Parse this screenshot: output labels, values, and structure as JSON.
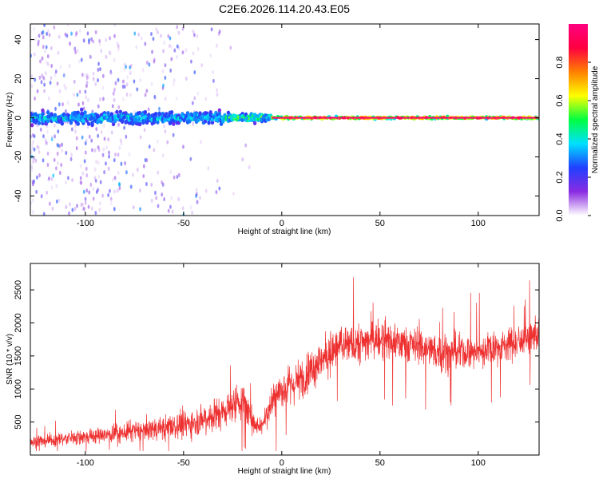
{
  "chart_data": [
    {
      "type": "heatmap",
      "title": "C2E6.2026.114.20.43.E05",
      "xlabel": "Height of straight line (km)",
      "ylabel": "Frequency (Hz)",
      "xlim": [
        -128,
        131
      ],
      "ylim": [
        -50,
        48
      ],
      "xticks": [
        -100,
        -50,
        0,
        50,
        100
      ],
      "yticks": [
        -40,
        -20,
        0,
        20,
        40
      ],
      "grid": false,
      "colorbar": {
        "label": "Normalized spectral amplitude",
        "range": [
          0.0,
          1.0
        ],
        "ticks": [
          "0.0",
          "0.2",
          "0.4",
          "0.6",
          "0.8"
        ],
        "colormap": "rainbow",
        "stops": [
          "#ffffff",
          "#8a2be2",
          "#2040ff",
          "#00e0ff",
          "#00ff40",
          "#ffff00",
          "#ff8000",
          "#ff0040",
          "#ff0080"
        ]
      },
      "description_segments": [
        {
          "x": [
            -128,
            -30
          ],
          "band_halfwidth_hz": 5,
          "peak_amplitude": 0.45,
          "scatter_density": "high"
        },
        {
          "x": [
            -30,
            -5
          ],
          "band_halfwidth_hz": 3,
          "peak_amplitude": 0.6,
          "scatter_density": "low"
        },
        {
          "x": [
            -5,
            131
          ],
          "band_halfwidth_hz": 1,
          "peak_amplitude": 0.95,
          "scatter_density": "none"
        }
      ]
    },
    {
      "type": "line",
      "xlabel": "Height of straight line (km)",
      "ylabel": "SNR (10 * v/v)",
      "xlim": [
        -128,
        131
      ],
      "ylim": [
        0,
        2900
      ],
      "xticks": [
        -100,
        -50,
        0,
        50,
        100
      ],
      "yticks": [
        500,
        1000,
        1500,
        2000,
        2500
      ],
      "grid": false,
      "line_color": "#ee3030",
      "series": [
        {
          "x": [
            -128,
            -110,
            -90,
            -70,
            -55,
            -40,
            -30,
            -20,
            -15,
            -10,
            -5,
            0,
            5,
            10,
            15,
            20,
            30,
            40,
            50,
            60,
            70,
            80,
            90,
            100,
            110,
            120,
            131
          ],
          "values": [
            200,
            250,
            300,
            380,
            420,
            550,
            650,
            850,
            500,
            450,
            850,
            1000,
            1050,
            1150,
            1300,
            1450,
            1650,
            1700,
            1750,
            1700,
            1650,
            1550,
            1550,
            1550,
            1650,
            1700,
            1800
          ],
          "noise_amplitude": [
            150,
            180,
            200,
            300,
            350,
            420,
            450,
            500,
            300,
            300,
            500,
            500,
            500,
            550,
            500,
            550,
            550,
            550,
            550,
            500,
            500,
            500,
            450,
            450,
            450,
            450,
            450
          ]
        }
      ]
    }
  ]
}
